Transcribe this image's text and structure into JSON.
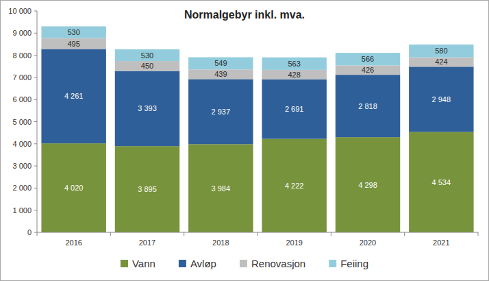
{
  "chart_data": {
    "type": "bar",
    "title": "Normalgebyr inkl. mva.",
    "categories": [
      "2016",
      "2017",
      "2018",
      "2019",
      "2020",
      "2021"
    ],
    "stacked": true,
    "data_labels": true,
    "grid": false,
    "legend": "bottom",
    "ylim": [
      0,
      10000
    ],
    "yticks": [
      0,
      {
        "value": 1000,
        "label": "1 000"
      },
      {
        "value": 2000,
        "label": "2 000"
      },
      {
        "value": 3000,
        "label": "3 000"
      },
      {
        "value": 4000,
        "label": "4 000"
      },
      {
        "value": 5000,
        "label": "5 000"
      },
      {
        "value": 6000,
        "label": "6 000"
      },
      {
        "value": 7000,
        "label": "7 000"
      },
      {
        "value": 8000,
        "label": "8 000"
      },
      {
        "value": 9000,
        "label": "9 000"
      },
      {
        "value": 10000,
        "label": "10 000"
      }
    ],
    "series": [
      {
        "name": "Vann",
        "color": "#77933c",
        "values": [
          4020,
          3895,
          3984,
          4222,
          4298,
          4534
        ],
        "value_labels": [
          "4 020",
          "3 895",
          "3 984",
          "4 222",
          "4 298",
          "4 534"
        ]
      },
      {
        "name": "Avløp",
        "color": "#2f5f98",
        "values": [
          4261,
          3393,
          2937,
          2691,
          2818,
          2948
        ],
        "value_labels": [
          "4 261",
          "3 393",
          "2 937",
          "2 691",
          "2 818",
          "2 948"
        ]
      },
      {
        "name": "Renovasjon",
        "color": "#bfbfbf",
        "values": [
          495,
          450,
          439,
          428,
          426,
          424
        ]
      },
      {
        "name": "Feiing",
        "color": "#93cddd",
        "values": [
          530,
          530,
          549,
          563,
          566,
          580
        ]
      }
    ]
  }
}
